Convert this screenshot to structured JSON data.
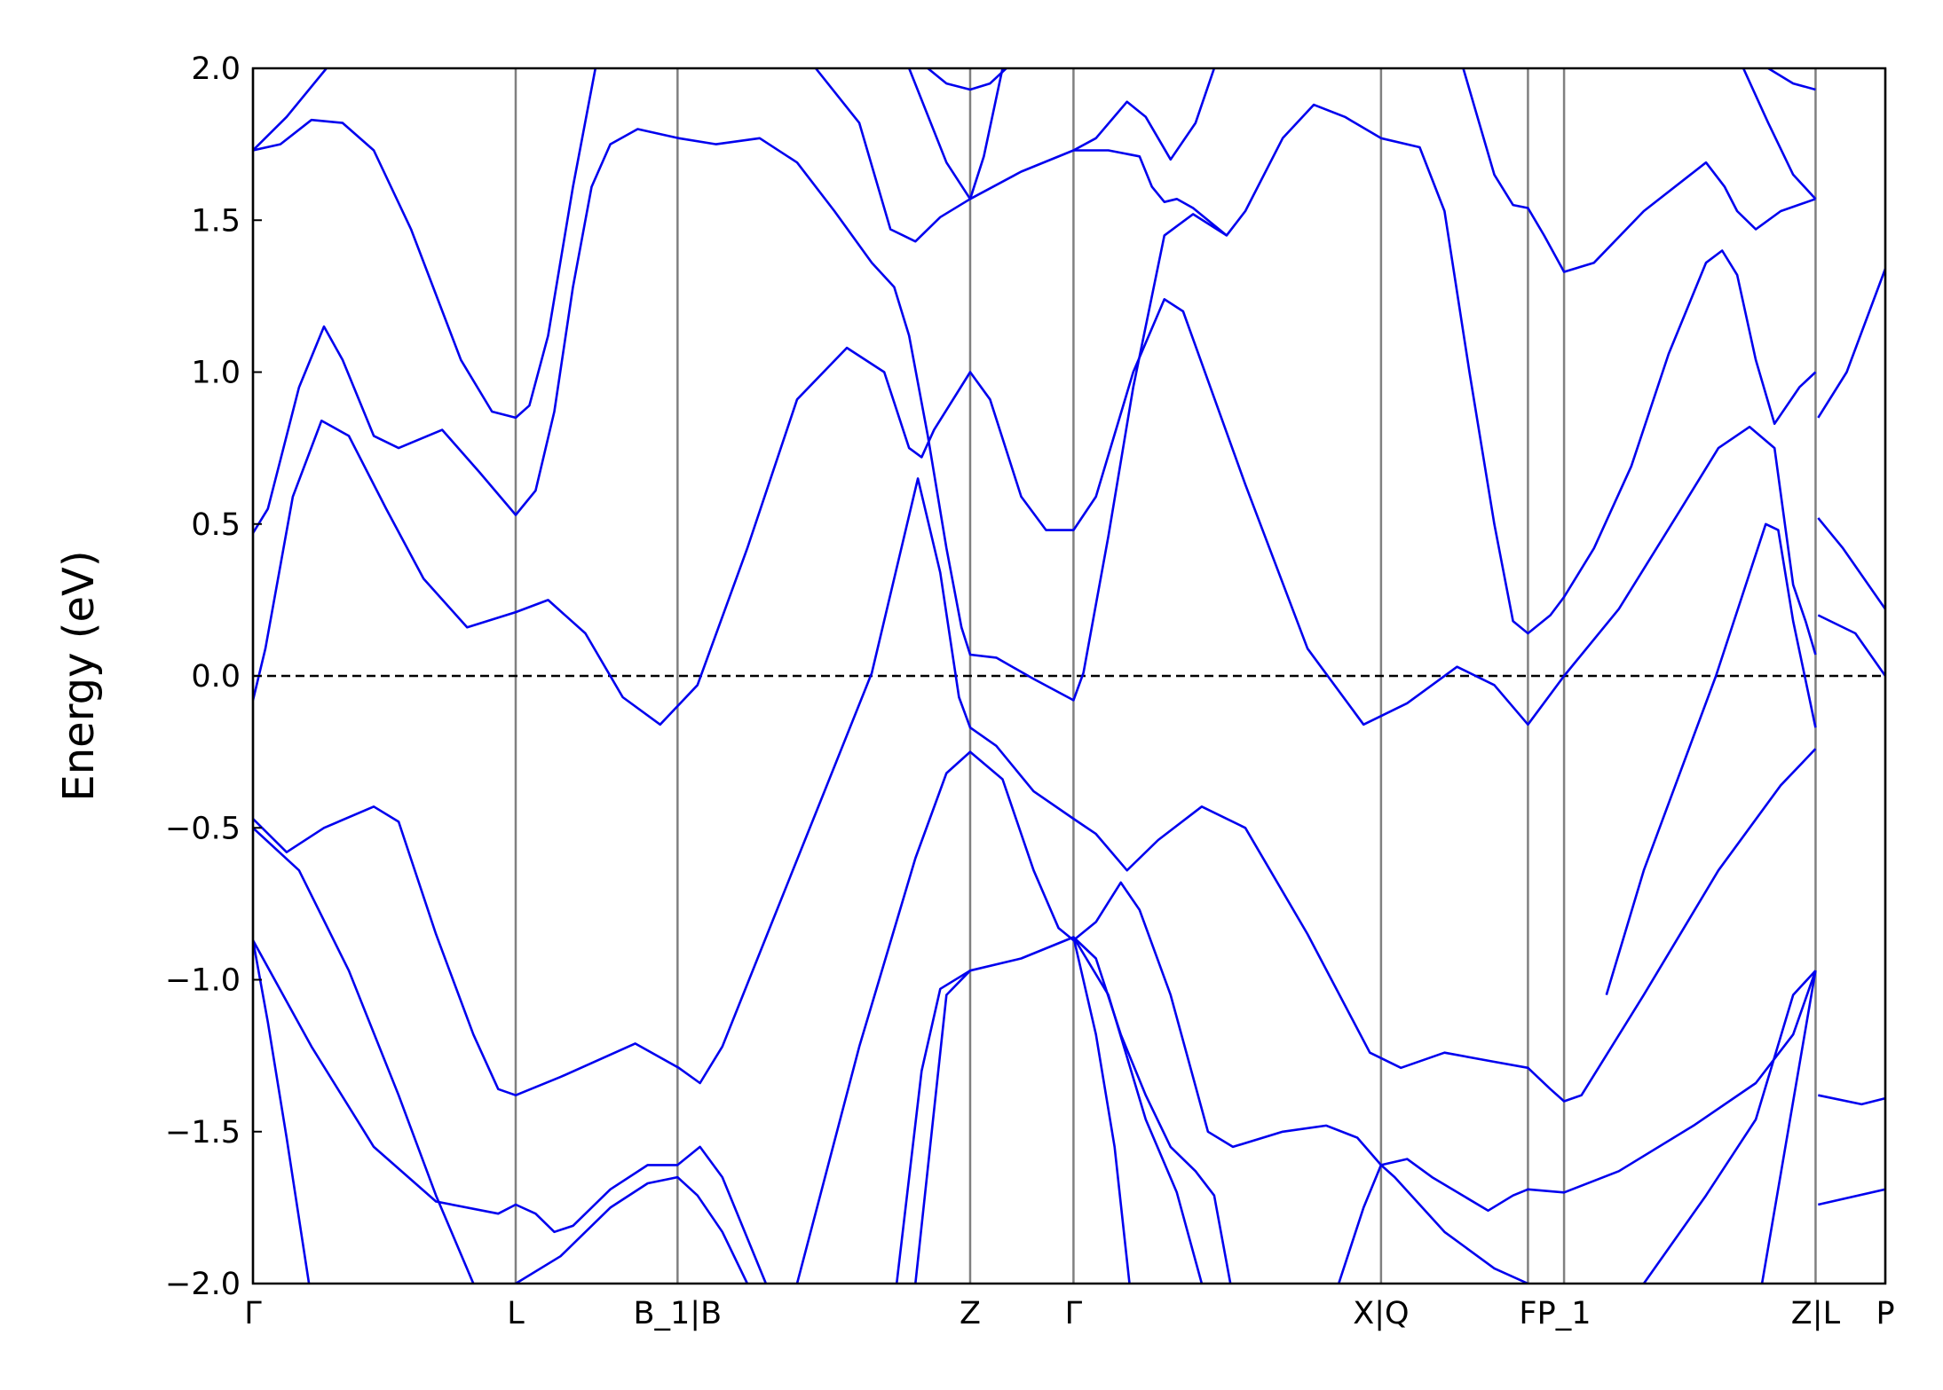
{
  "chart_data": {
    "type": "line",
    "ylabel": "Energy (eV)",
    "xlim": [
      0,
      1311
    ],
    "ylim": [
      -2,
      2
    ],
    "xticks": [
      {
        "value": 0,
        "label": "Γ"
      },
      {
        "value": 211,
        "label": "L"
      },
      {
        "value": 341,
        "label": "B_1|B"
      },
      {
        "value": 576,
        "label": "Z"
      },
      {
        "value": 659,
        "label": "Γ"
      },
      {
        "value": 906,
        "label": "X|Q"
      },
      {
        "value": 1024,
        "label": "F"
      },
      {
        "value": 1053,
        "label": "P_1"
      },
      {
        "value": 1255,
        "label": "Z|L"
      },
      {
        "value": 1311,
        "label": "P"
      }
    ],
    "yticks": [
      {
        "value": -2,
        "label": "−2.0"
      },
      {
        "value": -1.5,
        "label": "−1.5"
      },
      {
        "value": -1,
        "label": "−1.0"
      },
      {
        "value": -0.5,
        "label": "−0.5"
      },
      {
        "value": 0,
        "label": "0.0"
      },
      {
        "value": 0.5,
        "label": "0.5"
      },
      {
        "value": 1,
        "label": "1.0"
      },
      {
        "value": 1.5,
        "label": "1.5"
      },
      {
        "value": 2,
        "label": "2.0"
      }
    ],
    "fermi_level": 0,
    "vlines": true,
    "vline_color": "#808080",
    "series": [
      {
        "color": "#0000ee",
        "x": [
          0,
          10,
          32,
          55,
          77,
          107,
          137,
          172,
          211,
          237,
          267,
          297,
          327,
          357,
          397,
          437,
          477,
          507,
          527,
          537,
          547,
          576,
          592,
          617,
          637,
          659,
          677,
          707,
          732,
          747,
          797,
          847,
          892,
          927,
          967,
          997,
          1024,
          1053
        ],
        "values": [
          -0.08,
          0.09,
          0.59,
          0.84,
          0.79,
          0.55,
          0.32,
          0.16,
          0.21,
          0.25,
          0.14,
          -0.07,
          -0.16,
          -0.03,
          0.42,
          0.91,
          1.08,
          1.0,
          0.75,
          0.72,
          0.81,
          1.0,
          0.91,
          0.59,
          0.48,
          0.48,
          0.59,
          1.0,
          1.24,
          1.2,
          0.63,
          0.09,
          -0.16,
          -0.09,
          0.03,
          -0.03,
          -0.16,
          0.0
        ]
      },
      {
        "color": "#0000ee",
        "x": [
          1053,
          1097,
          1147,
          1177,
          1202,
          1222,
          1237,
          1247,
          1255
        ],
        "values": [
          0,
          0.22,
          0.55,
          0.75,
          0.82,
          0.75,
          0.3,
          0.18,
          0.07
        ]
      },
      {
        "color": "#0000ee",
        "x": [
          0,
          12,
          37,
          57,
          72,
          97,
          117,
          152,
          182,
          211,
          227,
          242,
          257,
          272,
          287,
          309,
          342,
          372,
          407,
          437,
          467,
          497,
          515,
          527,
          542,
          557,
          569,
          576,
          597,
          627,
          659,
          667,
          687,
          707,
          732,
          755,
          782,
          797,
          827,
          852,
          877,
          906,
          937,
          957,
          977,
          997,
          1012,
          1024,
          1042,
          1053,
          1077,
          1107,
          1137,
          1167,
          1180,
          1192,
          1207,
          1222,
          1242,
          1255
        ],
        "values": [
          0.47,
          0.55,
          0.95,
          1.15,
          1.04,
          0.79,
          0.75,
          0.81,
          0.67,
          0.53,
          0.61,
          0.87,
          1.28,
          1.61,
          1.75,
          1.8,
          1.77,
          1.75,
          1.77,
          1.69,
          1.53,
          1.36,
          1.28,
          1.12,
          0.79,
          0.42,
          0.16,
          0.07,
          0.06,
          -0.01,
          -0.08,
          0.01,
          0.46,
          0.95,
          1.45,
          1.52,
          1.45,
          1.53,
          1.77,
          1.88,
          1.84,
          1.77,
          1.74,
          1.53,
          1.0,
          0.5,
          0.18,
          0.14,
          0.2,
          0.26,
          0.42,
          0.69,
          1.06,
          1.36,
          1.4,
          1.32,
          1.04,
          0.83,
          0.95,
          1.0
        ]
      },
      {
        "color": "#0000ee",
        "x": [
          0,
          22,
          47,
          72,
          97,
          127,
          167,
          192,
          211,
          222,
          237,
          257,
          275
        ],
        "values": [
          1.73,
          1.75,
          1.83,
          1.82,
          1.73,
          1.47,
          1.04,
          0.87,
          0.85,
          0.89,
          1.12,
          1.61,
          2.0
        ]
      },
      {
        "color": "#0000ee",
        "x": [
          0,
          27,
          59
        ],
        "values": [
          1.73,
          1.84,
          2.0
        ]
      },
      {
        "color": "#0000ee",
        "x": [
          452,
          487,
          512,
          532,
          552,
          576,
          617,
          659,
          687,
          712,
          722,
          732,
          742,
          755,
          782
        ],
        "values": [
          2.0,
          1.82,
          1.47,
          1.43,
          1.51,
          1.57,
          1.66,
          1.73,
          1.73,
          1.71,
          1.61,
          1.56,
          1.57,
          1.54,
          1.45
        ]
      },
      {
        "color": "#0000ee",
        "x": [
          527,
          557,
          576,
          587,
          602
        ],
        "values": [
          2.0,
          1.69,
          1.57,
          1.71,
          2.0
        ]
      },
      {
        "color": "#0000ee",
        "x": [
          542,
          557,
          576,
          592,
          605
        ],
        "values": [
          2.0,
          1.95,
          1.93,
          1.95,
          2.0
        ]
      },
      {
        "color": "#0000ee",
        "x": [
          659,
          677,
          702,
          717,
          737,
          757,
          772
        ],
        "values": [
          1.73,
          1.77,
          1.89,
          1.84,
          1.7,
          1.82,
          2.0
        ]
      },
      {
        "color": "#0000ee",
        "x": [
          972,
          997,
          1012,
          1024,
          1037,
          1053,
          1077,
          1117,
          1167,
          1182,
          1192,
          1207,
          1227,
          1255
        ],
        "values": [
          2.0,
          1.65,
          1.55,
          1.54,
          1.45,
          1.33,
          1.36,
          1.53,
          1.69,
          1.61,
          1.53,
          1.47,
          1.53,
          1.57
        ]
      },
      {
        "color": "#0000ee",
        "x": [
          1197,
          1217,
          1237,
          1255
        ],
        "values": [
          2.0,
          1.82,
          1.65,
          1.57
        ]
      },
      {
        "color": "#0000ee",
        "x": [
          1217,
          1237,
          1255
        ],
        "values": [
          2.0,
          1.95,
          1.93
        ]
      },
      {
        "color": "#0000ee",
        "x": [
          1257,
          1277,
          1311
        ],
        "values": [
          0.52,
          0.42,
          0.22
        ]
      },
      {
        "color": "#0000ee",
        "x": [
          1257,
          1287,
          1311
        ],
        "values": [
          0.2,
          0.14,
          0.0
        ]
      },
      {
        "color": "#0000ee",
        "x": [
          1257,
          1280,
          1311
        ],
        "values": [
          0.85,
          1.0,
          1.34
        ]
      },
      {
        "color": "#0000ee",
        "x": [
          0,
          27,
          57,
          97,
          117,
          147,
          177,
          197,
          211,
          247,
          307,
          342,
          359,
          377,
          417,
          457,
          497,
          534,
          552,
          567,
          576,
          597,
          627,
          659,
          677,
          702,
          727,
          762,
          797,
          847,
          897,
          922,
          957,
          997,
          1024,
          1042,
          1053,
          1067,
          1117,
          1177,
          1227,
          1255
        ],
        "values": [
          -0.47,
          -0.58,
          -0.5,
          -0.43,
          -0.48,
          -0.85,
          -1.18,
          -1.36,
          -1.38,
          -1.32,
          -1.21,
          -1.29,
          -1.34,
          -1.22,
          -0.81,
          -0.4,
          0.01,
          0.65,
          0.34,
          -0.07,
          -0.17,
          -0.23,
          -0.38,
          -0.47,
          -0.52,
          -0.64,
          -0.54,
          -0.43,
          -0.5,
          -0.85,
          -1.24,
          -1.29,
          -1.24,
          -1.27,
          -1.29,
          -1.36,
          -1.4,
          -1.38,
          -1.05,
          -0.64,
          -0.36,
          -0.24
        ]
      },
      {
        "color": "#0000ee",
        "x": [
          437,
          487,
          532,
          557,
          576,
          602,
          627,
          647,
          659,
          677,
          697,
          712,
          737,
          767,
          787,
          827,
          862,
          887,
          906,
          927,
          947,
          992,
          1012,
          1024,
          1053,
          1097,
          1157,
          1207,
          1237,
          1255
        ],
        "values": [
          -2.0,
          -1.22,
          -0.6,
          -0.32,
          -0.25,
          -0.34,
          -0.64,
          -0.83,
          -0.87,
          -0.81,
          -0.68,
          -0.77,
          -1.05,
          -1.5,
          -1.55,
          -1.5,
          -1.48,
          -1.52,
          -1.61,
          -1.59,
          -1.65,
          -1.76,
          -1.71,
          -1.69,
          -1.7,
          -1.63,
          -1.48,
          -1.34,
          -1.18,
          -0.97
        ]
      },
      {
        "color": "#0000ee",
        "x": [
          0,
          12,
          27,
          45
        ],
        "values": [
          -0.87,
          -1.14,
          -1.52,
          -2.0
        ]
      },
      {
        "color": "#0000ee",
        "x": [
          0,
          47,
          97,
          147,
          197,
          211,
          227,
          242,
          257,
          287,
          317,
          341,
          359,
          377,
          412
        ],
        "values": [
          -0.87,
          -1.22,
          -1.55,
          -1.73,
          -1.77,
          -1.74,
          -1.77,
          -1.83,
          -1.81,
          -1.69,
          -1.61,
          -1.61,
          -1.55,
          -1.65,
          -2.0
        ]
      },
      {
        "color": "#0000ee",
        "x": [
          0,
          37,
          77,
          117,
          147,
          177
        ],
        "values": [
          -0.5,
          -0.64,
          -0.97,
          -1.38,
          -1.71,
          -2.0
        ]
      },
      {
        "color": "#0000ee",
        "x": [
          211,
          247,
          287,
          317,
          341,
          357,
          377,
          397
        ],
        "values": [
          -2.0,
          -1.91,
          -1.75,
          -1.67,
          -1.65,
          -1.71,
          -1.83,
          -2.0
        ]
      },
      {
        "color": "#0000ee",
        "x": [
          517,
          537,
          552,
          576,
          617,
          659,
          677,
          697,
          717,
          737,
          757,
          772,
          785
        ],
        "values": [
          -2.0,
          -1.3,
          -1.03,
          -0.97,
          -0.93,
          -0.86,
          -0.93,
          -1.18,
          -1.38,
          -1.55,
          -1.63,
          -1.71,
          -2.0
        ]
      },
      {
        "color": "#0000ee",
        "x": [
          532,
          557,
          576
        ],
        "values": [
          -2.0,
          -1.05,
          -0.97
        ]
      },
      {
        "color": "#0000ee",
        "x": [
          659,
          677,
          692,
          704
        ],
        "values": [
          -0.86,
          -1.18,
          -1.55,
          -2.0
        ]
      },
      {
        "color": "#0000ee",
        "x": [
          659,
          687,
          717,
          742,
          762
        ],
        "values": [
          -0.86,
          -1.05,
          -1.46,
          -1.7,
          -2.0
        ]
      },
      {
        "color": "#0000ee",
        "x": [
          872,
          892,
          906,
          917,
          957,
          997,
          1024
        ],
        "values": [
          -2.0,
          -1.75,
          -1.61,
          -1.65,
          -1.83,
          -1.95,
          -2.0
        ]
      },
      {
        "color": "#0000ee",
        "x": [
          1117,
          1167,
          1207,
          1237,
          1255
        ],
        "values": [
          -2.0,
          -1.71,
          -1.46,
          -1.05,
          -0.97
        ]
      },
      {
        "color": "#0000ee",
        "x": [
          1212,
          1237,
          1255
        ],
        "values": [
          -2.0,
          -1.4,
          -0.97
        ]
      },
      {
        "color": "#0000ee",
        "x": [
          1087,
          1117,
          1175,
          1215,
          1225,
          1237,
          1255
        ],
        "values": [
          -1.05,
          -0.64,
          0.0,
          0.5,
          0.48,
          0.18,
          -0.17
        ]
      },
      {
        "color": "#0000ee",
        "x": [
          1257,
          1292,
          1311
        ],
        "values": [
          -1.38,
          -1.41,
          -1.39
        ]
      },
      {
        "color": "#0000ee",
        "x": [
          1257,
          1311
        ],
        "values": [
          -1.74,
          -1.69
        ]
      }
    ]
  }
}
